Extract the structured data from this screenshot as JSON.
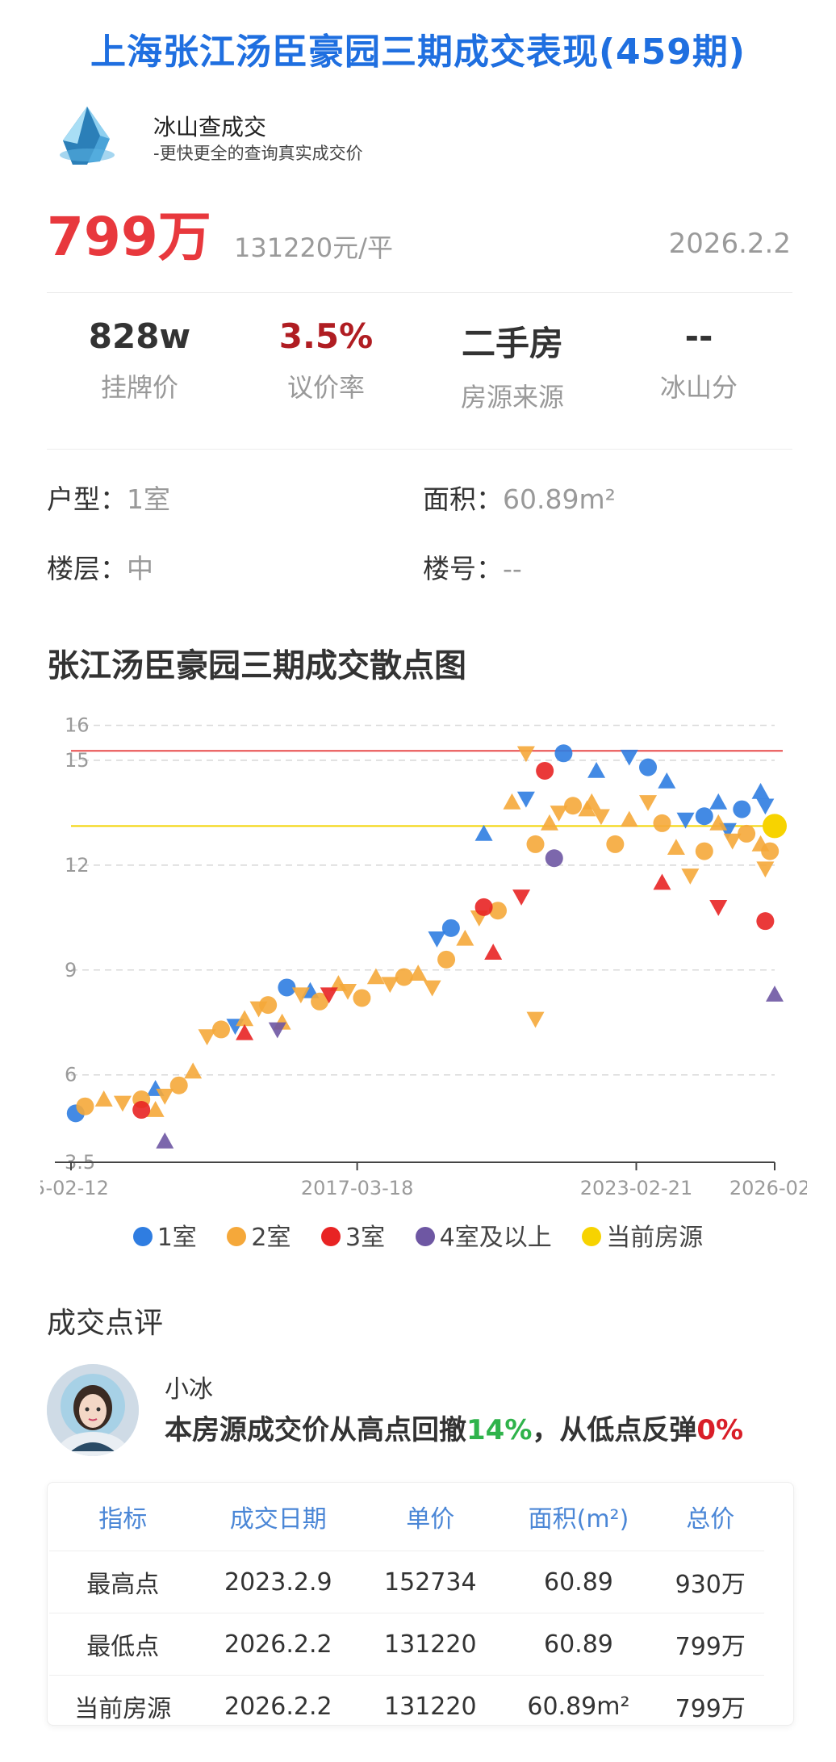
{
  "title": "上海张江汤臣豪园三期成交表现(459期)",
  "brand": {
    "name": "冰山查成交",
    "slogan": "-更快更全的查询真实成交价"
  },
  "deal": {
    "total_price": "799万",
    "unit_price": "131220元/平",
    "date": "2026.2.2"
  },
  "stats": [
    {
      "value": "828w",
      "label": "挂牌价",
      "color": "#333333"
    },
    {
      "value": "3.5%",
      "label": "议价率",
      "color": "#b01d22"
    },
    {
      "value": "二手房",
      "label": "房源来源",
      "color": "#333333"
    },
    {
      "value": "--",
      "label": "冰山分",
      "color": "#333333"
    }
  ],
  "details": {
    "layout_label": "户型：",
    "layout_value": "1室",
    "area_label": "面积：",
    "area_value": "60.89m²",
    "floor_label": "楼层：",
    "floor_value": "中",
    "building_label": "楼号：",
    "building_value": "--"
  },
  "chart_title": "张江汤臣豪园三期成交散点图",
  "chart_data": {
    "type": "scatter",
    "title": "张江汤臣豪园三期成交散点图",
    "xlabel": "",
    "ylabel": "",
    "x_tick_labels": [
      "5-02-12",
      "2017-03-18",
      "2023-02-21",
      "2026-02"
    ],
    "y_ticks": [
      3.5,
      6,
      9,
      12,
      15,
      16
    ],
    "ylim": [
      3.5,
      16.2
    ],
    "xlim": [
      2011.1,
      2026.1
    ],
    "grid": "horizontal dashed",
    "legend_position": "bottom",
    "reference_lines": [
      {
        "y": 15.27,
        "color": "#e84a4a"
      },
      {
        "y": 13.12,
        "color": "#f2d300"
      }
    ],
    "series": [
      {
        "name": "1室",
        "color": "#2f7de1",
        "points": [
          [
            2011.2,
            4.9
          ],
          [
            2012.9,
            5.6
          ],
          [
            2014.6,
            7.4
          ],
          [
            2015.7,
            8.5
          ],
          [
            2016.2,
            8.4
          ],
          [
            2018.9,
            9.9
          ],
          [
            2019.2,
            10.2
          ],
          [
            2019.9,
            12.9
          ],
          [
            2020.8,
            13.9
          ],
          [
            2021.6,
            15.2
          ],
          [
            2022.3,
            14.7
          ],
          [
            2023.0,
            15.1
          ],
          [
            2023.4,
            14.8
          ],
          [
            2023.8,
            14.4
          ],
          [
            2024.2,
            13.3
          ],
          [
            2024.6,
            13.4
          ],
          [
            2024.9,
            13.8
          ],
          [
            2025.1,
            13.0
          ],
          [
            2025.4,
            13.6
          ],
          [
            2025.8,
            14.1
          ],
          [
            2025.9,
            13.7
          ]
        ]
      },
      {
        "name": "2室",
        "color": "#f5a83a",
        "points": [
          [
            2011.4,
            5.1
          ],
          [
            2011.8,
            5.3
          ],
          [
            2012.2,
            5.2
          ],
          [
            2012.6,
            5.3
          ],
          [
            2012.9,
            5.0
          ],
          [
            2013.1,
            5.4
          ],
          [
            2013.4,
            5.7
          ],
          [
            2013.7,
            6.1
          ],
          [
            2014.0,
            7.1
          ],
          [
            2014.3,
            7.3
          ],
          [
            2014.8,
            7.6
          ],
          [
            2015.1,
            7.9
          ],
          [
            2015.3,
            8.0
          ],
          [
            2015.6,
            7.5
          ],
          [
            2016.0,
            8.3
          ],
          [
            2016.4,
            8.1
          ],
          [
            2016.8,
            8.6
          ],
          [
            2017.0,
            8.4
          ],
          [
            2017.3,
            8.2
          ],
          [
            2017.6,
            8.8
          ],
          [
            2017.9,
            8.6
          ],
          [
            2018.2,
            8.8
          ],
          [
            2018.5,
            8.9
          ],
          [
            2018.8,
            8.5
          ],
          [
            2019.1,
            9.3
          ],
          [
            2019.5,
            9.9
          ],
          [
            2019.8,
            10.5
          ],
          [
            2020.2,
            10.7
          ],
          [
            2020.5,
            13.8
          ],
          [
            2020.8,
            15.2
          ],
          [
            2021.0,
            12.6
          ],
          [
            2021.3,
            13.2
          ],
          [
            2021.5,
            13.5
          ],
          [
            2021.8,
            13.7
          ],
          [
            2022.1,
            13.6
          ],
          [
            2022.4,
            13.4
          ],
          [
            2022.7,
            12.6
          ],
          [
            2023.0,
            13.3
          ],
          [
            2023.4,
            13.8
          ],
          [
            2023.7,
            13.2
          ],
          [
            2024.0,
            12.5
          ],
          [
            2024.3,
            11.7
          ],
          [
            2024.6,
            12.4
          ],
          [
            2024.9,
            13.2
          ],
          [
            2025.2,
            12.7
          ],
          [
            2025.5,
            12.9
          ],
          [
            2025.8,
            12.6
          ],
          [
            2025.9,
            11.9
          ],
          [
            2026.0,
            12.4
          ],
          [
            2022.2,
            13.8
          ],
          [
            2021.0,
            7.6
          ]
        ]
      },
      {
        "name": "3室",
        "color": "#e82424",
        "points": [
          [
            2012.6,
            5.0
          ],
          [
            2014.8,
            7.2
          ],
          [
            2016.6,
            8.3
          ],
          [
            2019.9,
            10.8
          ],
          [
            2020.1,
            9.5
          ],
          [
            2020.7,
            11.1
          ],
          [
            2021.2,
            14.7
          ],
          [
            2023.7,
            11.5
          ],
          [
            2024.9,
            10.8
          ],
          [
            2025.9,
            10.4
          ]
        ]
      },
      {
        "name": "4室及以上",
        "color": "#6e57a3",
        "points": [
          [
            2013.1,
            4.1
          ],
          [
            2015.5,
            7.3
          ],
          [
            2021.4,
            12.2
          ],
          [
            2026.1,
            8.3
          ]
        ]
      },
      {
        "name": "当前房源",
        "color": "#f7d300",
        "points": [
          [
            2026.1,
            13.12
          ]
        ]
      }
    ]
  },
  "legend": [
    {
      "label": "1室",
      "color": "#2f7de1"
    },
    {
      "label": "2室",
      "color": "#f5a83a"
    },
    {
      "label": "3室",
      "color": "#e82424"
    },
    {
      "label": "4室及以上",
      "color": "#6e57a3"
    },
    {
      "label": "当前房源",
      "color": "#f7d300"
    }
  ],
  "review": {
    "section_title": "成交点评",
    "reviewer": "小冰",
    "text_part1": "本房源成交价从高点回撤",
    "pct_down": "14%",
    "text_part2": "，从低点反弹",
    "pct_up": "0%"
  },
  "table": {
    "headers": [
      "指标",
      "成交日期",
      "单价",
      "面积(m²)",
      "总价"
    ],
    "rows": [
      [
        "最高点",
        "2023.2.9",
        "152734",
        "60.89",
        "930万"
      ],
      [
        "最低点",
        "2026.2.2",
        "131220",
        "60.89",
        "799万"
      ],
      [
        "当前房源",
        "2026.2.2",
        "131220",
        "60.89m²",
        "799万"
      ]
    ]
  }
}
